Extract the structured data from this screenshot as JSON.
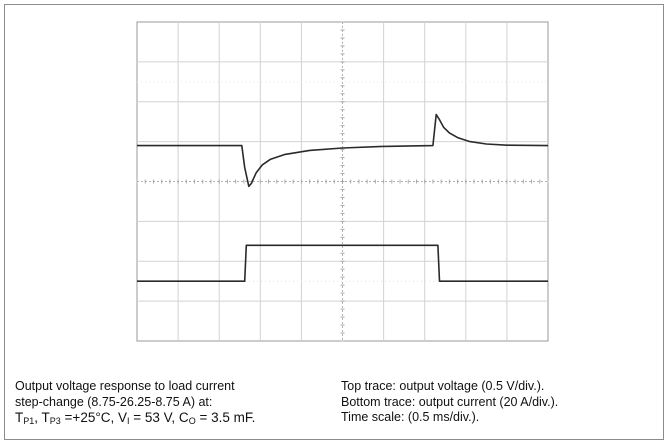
{
  "chart_data": {
    "type": "line",
    "title": "",
    "xlabel": "",
    "ylabel": "",
    "grid": true,
    "divisions": {
      "x": 10,
      "y": 8
    },
    "xlim_div": [
      0,
      10
    ],
    "ylim_div": [
      -4,
      4
    ],
    "series": [
      {
        "x": [
          0,
          2.55,
          2.62,
          2.72,
          2.78,
          2.9,
          3.05,
          3.25,
          3.6,
          4.2,
          5.0,
          6.0,
          7.2,
          7.24,
          7.28,
          7.36,
          7.46,
          7.6,
          7.8,
          8.1,
          8.5,
          9.0,
          10
        ],
        "y": [
          0.9,
          0.9,
          0.35,
          -0.12,
          -0.05,
          0.22,
          0.42,
          0.56,
          0.68,
          0.78,
          0.84,
          0.88,
          0.9,
          1.3,
          1.68,
          1.55,
          1.36,
          1.22,
          1.1,
          1.0,
          0.94,
          0.91,
          0.9
        ]
      },
      {
        "x": [
          0,
          2.62,
          2.66,
          7.32,
          7.36,
          10
        ],
        "y": [
          -2.5,
          -2.5,
          -1.6,
          -1.6,
          -2.5,
          -2.5
        ]
      }
    ]
  },
  "caption": {
    "left": {
      "line1": "Output voltage response to load current",
      "line2": "step-change (8.75-26.25-8.75 A) at:",
      "t": "T",
      "p1": "P1",
      "comma": ", ",
      "p3": "P3",
      "temp": " =+25°C, V",
      "vi_sub": "I",
      "vi_val": " = 53 V, C",
      "co_sub": "O",
      "co_val": " = 3.5 mF."
    },
    "right": {
      "line1": "Top trace: output voltage (0.5 V/div.).",
      "line2": "Bottom trace: output current (20 A/div.).",
      "line3": "Time scale: (0.5 ms/div.)."
    }
  }
}
